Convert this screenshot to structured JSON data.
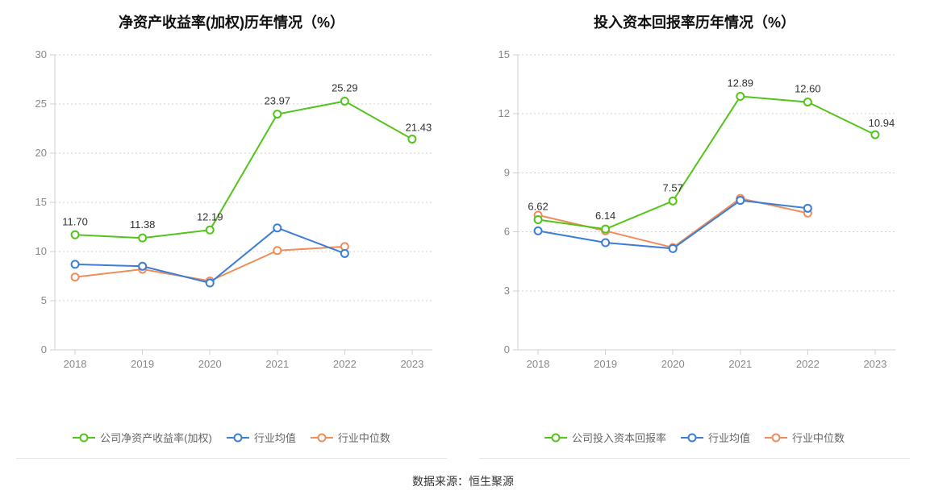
{
  "source_line": "数据来源：恒生聚源",
  "global_style": {
    "background_color": "#ffffff",
    "axis_color": "#d0d0d0",
    "grid_color": "#d0d0d0",
    "grid_dash": "2 3",
    "tick_label_color": "#888888",
    "tick_label_fontsize": 13,
    "title_fontsize": 18,
    "title_color": "#111111",
    "value_label_fontsize": 13,
    "value_label_color": "#333333",
    "line_width": 2,
    "marker_radius": 4.5,
    "marker_fill": "#ffffff",
    "legend_fontsize": 13,
    "legend_text_color": "#666666",
    "divider_color": "#e5e5e5",
    "source_fontsize": 14,
    "source_color": "#333333"
  },
  "series_colors": {
    "company": "#52c41a",
    "avg": "#3b7dd8",
    "median": "#f08c5a"
  },
  "charts": [
    {
      "id": "roe",
      "title": "净资产收益率(加权)历年情况（%）",
      "type": "line",
      "categories": [
        "2018",
        "2019",
        "2020",
        "2021",
        "2022",
        "2023"
      ],
      "y_axis": {
        "min": 0,
        "max": 30,
        "tick_step": 5
      },
      "series": [
        {
          "key": "company",
          "legend": "公司净资产收益率(加权)",
          "color_key": "company",
          "values": [
            11.7,
            11.38,
            12.19,
            23.97,
            25.29,
            21.43
          ],
          "show_value_labels": true,
          "last_open_marker": true
        },
        {
          "key": "avg",
          "legend": "行业均值",
          "color_key": "avg",
          "values": [
            8.7,
            8.5,
            6.8,
            12.4,
            9.8,
            null
          ],
          "show_value_labels": false,
          "last_open_marker": false
        },
        {
          "key": "median",
          "legend": "行业中位数",
          "color_key": "median",
          "values": [
            7.4,
            8.2,
            7.0,
            10.1,
            10.5,
            null
          ],
          "show_value_labels": false,
          "last_open_marker": false
        }
      ]
    },
    {
      "id": "roic",
      "title": "投入资本回报率历年情况（%）",
      "type": "line",
      "categories": [
        "2018",
        "2019",
        "2020",
        "2021",
        "2022",
        "2023"
      ],
      "y_axis": {
        "min": 0,
        "max": 15,
        "tick_step": 3
      },
      "series": [
        {
          "key": "company",
          "legend": "公司投入资本回报率",
          "color_key": "company",
          "values": [
            6.62,
            6.14,
            7.57,
            12.89,
            12.6,
            10.94
          ],
          "show_value_labels": true,
          "last_open_marker": true
        },
        {
          "key": "avg",
          "legend": "行业均值",
          "color_key": "avg",
          "values": [
            6.05,
            5.45,
            5.15,
            7.6,
            7.2,
            null
          ],
          "show_value_labels": false,
          "last_open_marker": false
        },
        {
          "key": "median",
          "legend": "行业中位数",
          "color_key": "median",
          "values": [
            6.85,
            6.05,
            5.2,
            7.7,
            6.95,
            null
          ],
          "show_value_labels": false,
          "last_open_marker": false
        }
      ]
    }
  ]
}
